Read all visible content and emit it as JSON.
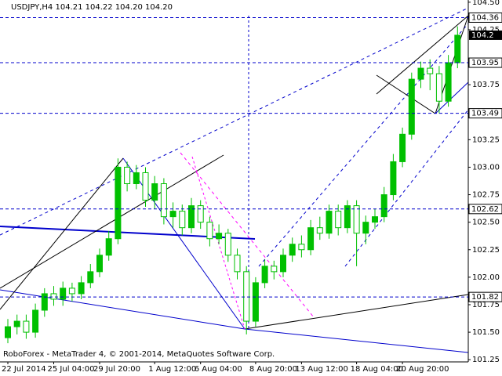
{
  "chart_data": {
    "type": "candlestick",
    "title": "USDJPY,H4  104.21 104.22 104.20 104.20",
    "footer": "RoboForex - MetaTrader 4, © 2001-2014, MetaQuotes Software Corp.",
    "categories": [
      "22 Jul 2014",
      null,
      null,
      null,
      null,
      "25 Jul 04:00",
      null,
      null,
      null,
      null,
      "29 Jul 20:00",
      null,
      null,
      null,
      null,
      null,
      "1 Aug 12:00",
      null,
      null,
      null,
      null,
      "6 Aug 04:00",
      null,
      null,
      null,
      null,
      null,
      "8 Aug 20:00",
      null,
      null,
      null,
      null,
      "13 Aug 12:00",
      null,
      null,
      null,
      null,
      null,
      "18 Aug 04:00",
      null,
      null,
      null,
      null,
      "20 Aug 20:00",
      null,
      null,
      null,
      null,
      null,
      null
    ],
    "open": [
      101.45,
      101.55,
      101.6,
      101.5,
      101.7,
      101.85,
      101.8,
      101.9,
      101.85,
      101.95,
      102.05,
      102.2,
      102.35,
      103.0,
      102.85,
      102.95,
      102.7,
      102.85,
      102.55,
      102.6,
      102.45,
      102.65,
      102.5,
      102.35,
      102.4,
      102.2,
      102.05,
      101.6,
      101.95,
      102.1,
      102.05,
      102.2,
      102.3,
      102.25,
      102.45,
      102.4,
      102.6,
      102.45,
      102.65,
      102.4,
      102.5,
      102.55,
      102.75,
      103.05,
      103.3,
      103.8,
      103.9,
      103.85,
      103.6,
      103.95
    ],
    "high": [
      101.62,
      101.66,
      101.66,
      101.76,
      101.9,
      101.92,
      101.96,
      101.95,
      102.01,
      102.12,
      102.26,
      102.42,
      103.08,
      103.05,
      103.02,
      103.0,
      102.92,
      102.9,
      102.68,
      102.66,
      102.72,
      102.7,
      102.55,
      102.48,
      102.44,
      102.26,
      102.1,
      102.0,
      102.16,
      102.15,
      102.26,
      102.36,
      102.38,
      102.52,
      102.55,
      102.66,
      102.66,
      102.7,
      102.7,
      102.56,
      102.62,
      102.82,
      103.12,
      103.36,
      103.86,
      103.96,
      103.98,
      103.92,
      104.02,
      104.28
    ],
    "low": [
      101.4,
      101.48,
      101.44,
      101.45,
      101.64,
      101.74,
      101.74,
      101.78,
      101.8,
      101.9,
      102.0,
      102.15,
      102.3,
      102.78,
      102.8,
      102.64,
      102.62,
      102.48,
      102.45,
      102.38,
      102.4,
      102.44,
      102.28,
      102.3,
      102.14,
      101.98,
      101.48,
      101.55,
      101.9,
      101.98,
      102.0,
      102.14,
      102.18,
      102.2,
      102.34,
      102.35,
      102.38,
      102.4,
      102.1,
      102.3,
      102.44,
      102.5,
      102.7,
      103.0,
      103.25,
      103.72,
      103.7,
      103.49,
      103.55,
      103.9
    ],
    "close": [
      101.55,
      101.6,
      101.5,
      101.7,
      101.85,
      101.8,
      101.9,
      101.85,
      101.95,
      102.05,
      102.2,
      102.35,
      103.0,
      102.85,
      102.95,
      102.7,
      102.85,
      102.55,
      102.6,
      102.45,
      102.65,
      102.5,
      102.35,
      102.4,
      102.2,
      102.05,
      101.6,
      101.95,
      102.1,
      102.05,
      102.2,
      102.3,
      102.25,
      102.45,
      102.4,
      102.6,
      102.45,
      102.65,
      102.4,
      102.5,
      102.55,
      102.75,
      103.05,
      103.3,
      103.8,
      103.9,
      103.85,
      103.6,
      103.95,
      104.2
    ],
    "color": "#00c000",
    "ylim": [
      101.23,
      104.52
    ],
    "yticks": [
      {
        "value": 104.5,
        "label": "104.50"
      },
      {
        "value": 104.25,
        "label": "104.25"
      },
      {
        "value": 103.75,
        "label": "103.75"
      },
      {
        "value": 103.25,
        "label": "103.25"
      },
      {
        "value": 103.0,
        "label": "103.00"
      },
      {
        "value": 102.75,
        "label": "102.75"
      },
      {
        "value": 102.5,
        "label": "102.50"
      },
      {
        "value": 102.25,
        "label": "102.25"
      },
      {
        "value": 102.0,
        "label": "102.00"
      },
      {
        "value": 101.75,
        "label": "101.75"
      },
      {
        "value": 101.5,
        "label": "101.50"
      },
      {
        "value": 101.25,
        "label": "101.25"
      }
    ],
    "levels": [
      104.36,
      103.95,
      103.49,
      102.62,
      101.82
    ],
    "current_price": 104.2
  }
}
